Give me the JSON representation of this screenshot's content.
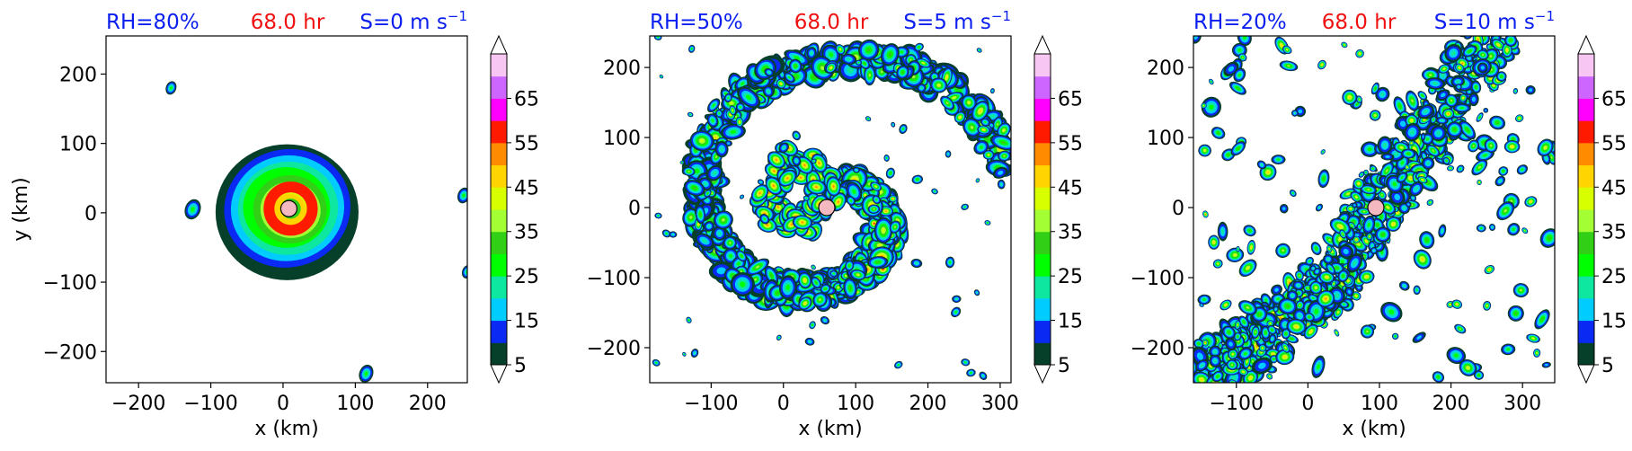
{
  "color_levels": [
    5,
    10,
    15,
    20,
    25,
    30,
    35,
    40,
    45,
    50,
    55,
    60,
    65,
    70
  ],
  "colormap": [
    "#063f2a",
    "#0a29f2",
    "#00ccff",
    "#0ee7a0",
    "#00ff00",
    "#31cf15",
    "#a3ff33",
    "#d8ff00",
    "#ffd400",
    "#ff8c00",
    "#ff1a00",
    "#ff00ff",
    "#cc66ff",
    "#f7c6f2"
  ],
  "colorbar_ticks": [
    "5",
    "15",
    "25",
    "35",
    "45",
    "55",
    "65"
  ],
  "storm_center_color": "#f4b8c0",
  "chart_data": [
    {
      "type": "heatmap",
      "title": {
        "left": "RH=80%",
        "center": "68.0 hr",
        "right": "S=0 m s",
        "right_sup": "−1"
      },
      "xlabel": "x (km)",
      "ylabel": "y (km)",
      "xlim": [
        -245,
        255
      ],
      "ylim": [
        -245,
        255
      ],
      "xticks": [
        -200,
        -100,
        0,
        100,
        200
      ],
      "yticks": [
        -200,
        -100,
        0,
        100,
        200
      ],
      "center": [
        8,
        6
      ],
      "pattern": "compact",
      "seed": 11
    },
    {
      "type": "heatmap",
      "title": {
        "left": "RH=50%",
        "center": "68.0 hr",
        "right": "S=5 m s",
        "right_sup": "−1"
      },
      "xlabel": "x (km)",
      "ylabel": "",
      "xlim": [
        -185,
        315
      ],
      "ylim": [
        -250,
        245
      ],
      "xticks": [
        -100,
        0,
        100,
        200,
        300
      ],
      "yticks": [
        -200,
        -100,
        0,
        100,
        200
      ],
      "center": [
        60,
        0
      ],
      "pattern": "spiral",
      "seed": 23
    },
    {
      "type": "heatmap",
      "title": {
        "left": "RH=20%",
        "center": "68.0 hr",
        "right": "S=10 m s",
        "right_sup": "−1"
      },
      "xlabel": "x (km)",
      "ylabel": "",
      "xlim": [
        -160,
        345
      ],
      "ylim": [
        -250,
        245
      ],
      "xticks": [
        -100,
        0,
        100,
        200,
        300
      ],
      "yticks": [
        -200,
        -100,
        0,
        100,
        200
      ],
      "center": [
        95,
        0
      ],
      "pattern": "sheared",
      "seed": 37
    }
  ]
}
